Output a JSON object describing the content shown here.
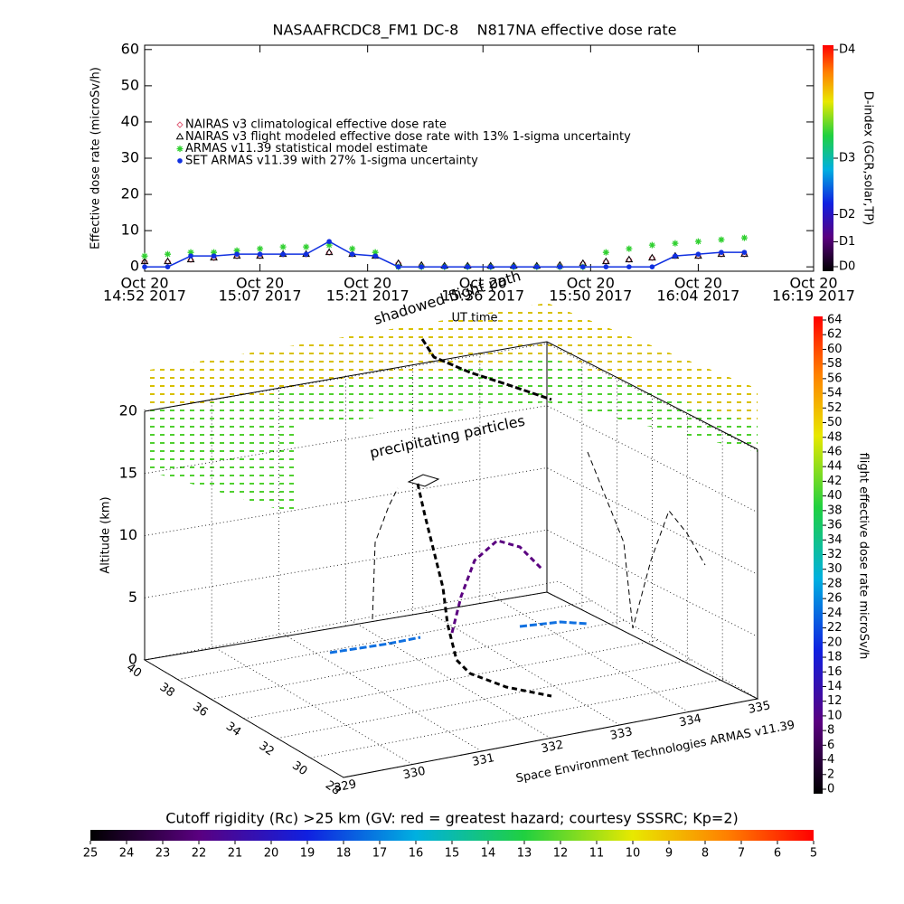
{
  "chart_data": [
    {
      "type": "scatter",
      "title": "NASAAFRCDC8_FM1 DC-8    N817NA effective dose rate",
      "ylabel": "Effective dose rate (microSv/h)",
      "xlabel": "UT time",
      "x": [
        "2017-10-20 14:52",
        "2017-10-20 14:55",
        "2017-10-20 14:58",
        "2017-10-20 15:01",
        "2017-10-20 15:04",
        "2017-10-20 15:07",
        "2017-10-20 15:10",
        "2017-10-20 15:13",
        "2017-10-20 15:16",
        "2017-10-20 15:19",
        "2017-10-20 15:22",
        "2017-10-20 15:25",
        "2017-10-20 15:28",
        "2017-10-20 15:31",
        "2017-10-20 15:34",
        "2017-10-20 15:37",
        "2017-10-20 15:40",
        "2017-10-20 15:43",
        "2017-10-20 15:46",
        "2017-10-20 15:49",
        "2017-10-20 15:52",
        "2017-10-20 15:55",
        "2017-10-20 15:58",
        "2017-10-20 16:01",
        "2017-10-20 16:04",
        "2017-10-20 16:07",
        "2017-10-20 16:10"
      ],
      "series": [
        {
          "name": "NAIRAS v3 climatological effective dose rate",
          "color": "#e0607a",
          "marker": "diamond",
          "values": [
            1.5,
            1.5,
            2,
            2.5,
            3,
            3,
            3.5,
            3.5,
            4,
            3.5,
            3,
            1,
            0.5,
            0.3,
            0.3,
            0.3,
            0.3,
            0.3,
            0.5,
            1,
            1.5,
            2,
            2.5,
            3,
            3,
            3.5,
            3.5
          ]
        },
        {
          "name": "NAIRAS v3 flight modeled effective dose rate with 13% 1-sigma uncertainty",
          "color": "#000000",
          "marker": "triangle",
          "values": [
            1.5,
            1.5,
            2,
            2.5,
            3,
            3,
            3.5,
            3.5,
            4,
            3.5,
            3,
            1,
            0.5,
            0.3,
            0.3,
            0.3,
            0.3,
            0.3,
            0.5,
            1,
            1.5,
            2,
            2.5,
            3,
            3,
            3.5,
            3.5
          ]
        },
        {
          "name": "ARMAS v11.39 statistical model estimate",
          "color": "#30d030",
          "marker": "asterisk",
          "values": [
            3,
            3.5,
            4,
            4,
            4.5,
            5,
            5.5,
            5.5,
            6,
            5,
            4,
            0,
            0,
            0,
            0,
            0,
            0,
            0,
            0,
            0,
            4,
            5,
            6,
            6.5,
            7,
            7.5,
            8
          ]
        },
        {
          "name": "SET ARMAS v11.39 with 27% 1-sigma uncertainty",
          "color": "#1030e0",
          "marker": "circle",
          "values": [
            0,
            0,
            3,
            3,
            3.5,
            3.5,
            3.5,
            3.5,
            7,
            3.5,
            3,
            0,
            0,
            0,
            0,
            0,
            0,
            0,
            0,
            0,
            0,
            0,
            0,
            3,
            3.5,
            4,
            4
          ]
        }
      ],
      "xlim": [
        "2017-10-20 14:52",
        "2017-10-20 16:19"
      ],
      "xticks": [
        {
          "value": "2017-10-20 14:52",
          "label": [
            "Oct 20",
            "14:52 2017"
          ]
        },
        {
          "value": "2017-10-20 15:07",
          "label": [
            "Oct 20",
            "15:07 2017"
          ]
        },
        {
          "value": "2017-10-20 15:21",
          "label": [
            "Oct 20",
            "15:21 2017"
          ]
        },
        {
          "value": "2017-10-20 15:36",
          "label": [
            "Oct 20",
            "15:36 2017"
          ]
        },
        {
          "value": "2017-10-20 15:50",
          "label": [
            "Oct 20",
            "15:50 2017"
          ]
        },
        {
          "value": "2017-10-20 16:04",
          "label": [
            "Oct 20",
            "16:04 2017"
          ]
        },
        {
          "value": "2017-10-20 16:19",
          "label": [
            "Oct 20",
            "16:19 2017"
          ]
        }
      ],
      "ylim": [
        -1.2,
        61.2
      ],
      "yticks": [
        0,
        10,
        20,
        30,
        40,
        50,
        60
      ],
      "colorbar": {
        "label": "D-index (GCR,solar,TP)",
        "lim": [
          0,
          1
        ],
        "ticks": [
          {
            "value": 0.02,
            "label": "D0"
          },
          {
            "value": 0.13,
            "label": "D1"
          },
          {
            "value": 0.25,
            "label": "D2"
          },
          {
            "value": 0.5,
            "label": "D3"
          },
          {
            "value": 0.98,
            "label": "D4"
          }
        ]
      }
    },
    {
      "type": "scatter3d",
      "zlabel": "Altitude (km)",
      "zlim": [
        0,
        20
      ],
      "zticks": [
        0,
        5,
        10,
        15,
        20
      ],
      "latlim": [
        40,
        28
      ],
      "latticks": [
        40,
        38,
        36,
        34,
        32,
        30,
        28
      ],
      "lonlim": [
        329,
        335
      ],
      "lonticks": [
        329,
        330,
        331,
        332,
        333,
        334,
        335
      ],
      "annotations": [
        "shadowed flight path",
        "precipitating particles"
      ],
      "credit": "Space Environment Technologies ARMAS v11.39",
      "colorbar": {
        "label": "flight effective dose rate microSv/h",
        "lim": [
          0,
          64
        ],
        "ticks": [
          0,
          2,
          4,
          6,
          8,
          10,
          12,
          14,
          16,
          18,
          20,
          22,
          24,
          26,
          28,
          30,
          32,
          34,
          36,
          38,
          40,
          42,
          44,
          46,
          48,
          50,
          52,
          54,
          56,
          58,
          60,
          62,
          64
        ]
      },
      "cutoff_colorbar": {
        "title": "Cutoff rigidity (Rc) >25 km (GV: red = greatest hazard; courtesy SSSRC; Kp=2)",
        "lim": [
          25,
          5
        ],
        "ticks": [
          25,
          24,
          23,
          22,
          21,
          20,
          19,
          18,
          17,
          16,
          15,
          14,
          13,
          12,
          11,
          10,
          9,
          8,
          7,
          6,
          5
        ]
      }
    }
  ]
}
